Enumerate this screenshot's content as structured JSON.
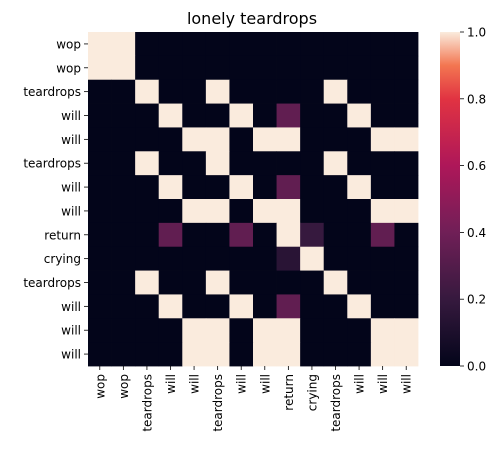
{
  "chart_data": {
    "type": "heatmap",
    "title": "lonely teardrops",
    "x_labels": [
      "wop",
      "wop",
      "teardrops",
      "will",
      "will",
      "teardrops",
      "will",
      "will",
      "return",
      "crying",
      "teardrops",
      "will",
      "will",
      "will"
    ],
    "y_labels": [
      "wop",
      "wop",
      "teardrops",
      "will",
      "will",
      "teardrops",
      "will",
      "will",
      "return",
      "crying",
      "teardrops",
      "will",
      "will",
      "will"
    ],
    "values": [
      [
        1,
        1,
        0,
        0,
        0,
        0,
        0,
        0,
        0,
        0,
        0,
        0,
        0,
        0
      ],
      [
        1,
        1,
        0,
        0,
        0,
        0,
        0,
        0,
        0,
        0,
        0,
        0,
        0,
        0
      ],
      [
        0,
        0,
        1,
        0,
        0,
        1,
        0,
        0,
        0,
        0,
        1,
        0,
        0,
        0
      ],
      [
        0,
        0,
        0,
        1,
        0,
        0,
        1,
        0,
        0.35,
        0,
        0,
        1,
        0,
        0
      ],
      [
        0,
        0,
        0,
        0,
        1,
        1,
        0,
        1,
        1,
        0,
        0,
        0,
        1,
        1
      ],
      [
        0,
        0,
        1,
        0,
        0,
        1,
        0,
        0,
        0,
        0,
        1,
        0,
        0,
        0
      ],
      [
        0,
        0,
        0,
        1,
        0,
        0,
        1,
        0,
        0.35,
        0,
        0,
        1,
        0,
        0
      ],
      [
        0,
        0,
        0,
        0,
        1,
        1,
        0,
        1,
        1,
        0,
        0,
        0,
        1,
        1
      ],
      [
        0,
        0,
        0,
        0.35,
        0,
        0,
        0.35,
        0,
        1,
        0.2,
        0,
        0,
        0.35,
        0
      ],
      [
        0,
        0,
        0,
        0,
        0,
        0,
        0,
        0,
        0.15,
        1,
        0,
        0,
        0,
        0
      ],
      [
        0,
        0,
        1,
        0,
        0,
        1,
        0,
        0,
        0,
        0,
        1,
        0,
        0,
        0
      ],
      [
        0,
        0,
        0,
        1,
        0,
        0,
        1,
        0,
        0.35,
        0,
        0,
        1,
        0,
        0
      ],
      [
        0,
        0,
        0,
        0,
        1,
        1,
        0,
        1,
        1,
        0,
        0,
        0,
        1,
        1
      ],
      [
        0,
        0,
        0,
        0,
        1,
        1,
        0,
        1,
        1,
        0,
        0,
        0,
        1,
        1
      ]
    ],
    "colorbar": {
      "min": 0.0,
      "max": 1.0,
      "ticks": [
        "0.0",
        "0.2",
        "0.4",
        "0.6",
        "0.8",
        "1.0"
      ]
    },
    "grid": false,
    "legend": "right"
  }
}
